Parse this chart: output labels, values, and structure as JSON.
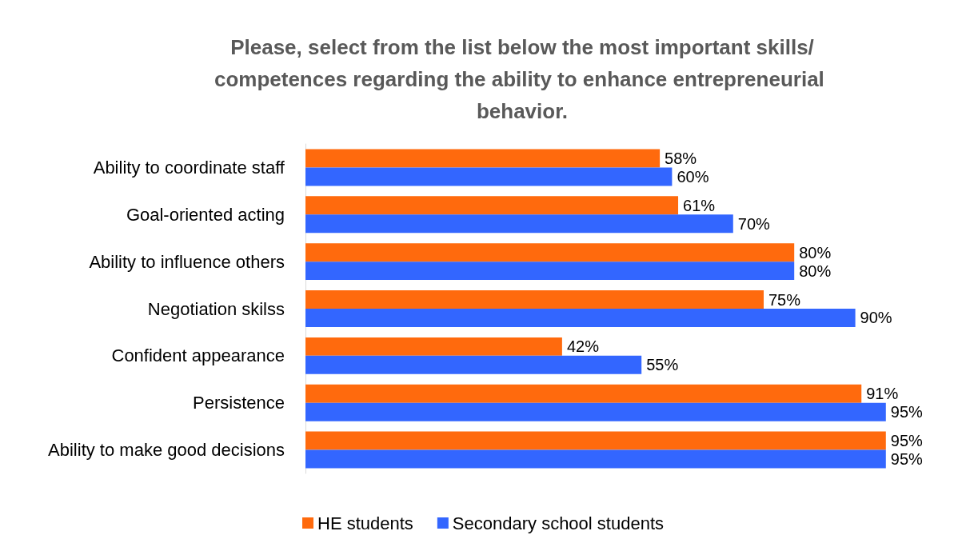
{
  "chart_data": {
    "type": "bar",
    "orientation": "horizontal",
    "title": "Please, select from the list below the most important skills/competences regarding the ability to enhance entrepreneurial behavior.",
    "categories": [
      "Ability to coordinate staff",
      "Goal-oriented acting",
      "Ability to influence others",
      "Negotiation skilss",
      "Confident appearance",
      "Persistence",
      "Ability to make good decisions"
    ],
    "series": [
      {
        "name": "HE students",
        "color": "#ff6a0d",
        "values": [
          58,
          61,
          80,
          75,
          42,
          91,
          95
        ],
        "value_labels": [
          "58%",
          "61%",
          "80%",
          "75%",
          "42%",
          "91%",
          "95%"
        ]
      },
      {
        "name": "Secondary school students",
        "color": "#3366ff",
        "values": [
          60,
          70,
          80,
          90,
          55,
          95,
          95
        ],
        "value_labels": [
          "60%",
          "70%",
          "80%",
          "90%",
          "55%",
          "95%",
          "95%"
        ]
      }
    ],
    "tick_labels": "y",
    "grid": false,
    "legend": "bottom"
  }
}
